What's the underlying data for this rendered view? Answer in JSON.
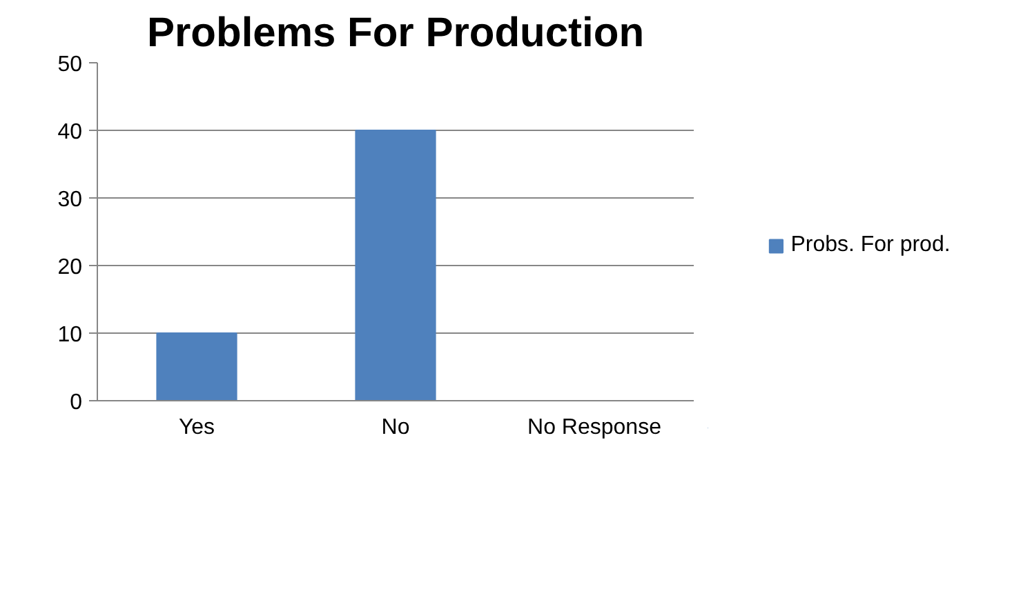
{
  "chart_data": {
    "type": "bar",
    "title": "Problems For Production",
    "categories": [
      "Yes",
      "No",
      "No Response"
    ],
    "series": [
      {
        "name": "Probs. For prod.",
        "color": "#4f81bd",
        "values": [
          10,
          40,
          0
        ]
      }
    ],
    "ylim": [
      0,
      50
    ],
    "yticks": [
      0,
      10,
      20,
      30,
      40,
      50
    ],
    "grid": "y",
    "legend": "right"
  }
}
